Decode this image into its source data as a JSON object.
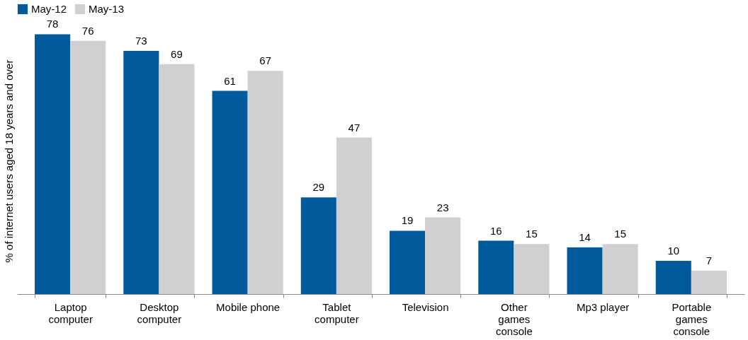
{
  "chart_data": {
    "type": "bar",
    "ylabel": "% of internet users aged 18 years and over",
    "categories": [
      "Laptop computer",
      "Desktop computer",
      "Mobile phone",
      "Tablet computer",
      "Television",
      "Other games console",
      "Mp3 player",
      "Portable games console"
    ],
    "series": [
      {
        "name": "May-12",
        "color": "#005a9c",
        "values": [
          78,
          73,
          61,
          29,
          19,
          16,
          14,
          10
        ]
      },
      {
        "name": "May-13",
        "color": "#d0d0d2",
        "values": [
          76,
          69,
          67,
          47,
          23,
          15,
          15,
          7
        ]
      }
    ],
    "data_labels": true,
    "legend": "top",
    "grid": false
  }
}
